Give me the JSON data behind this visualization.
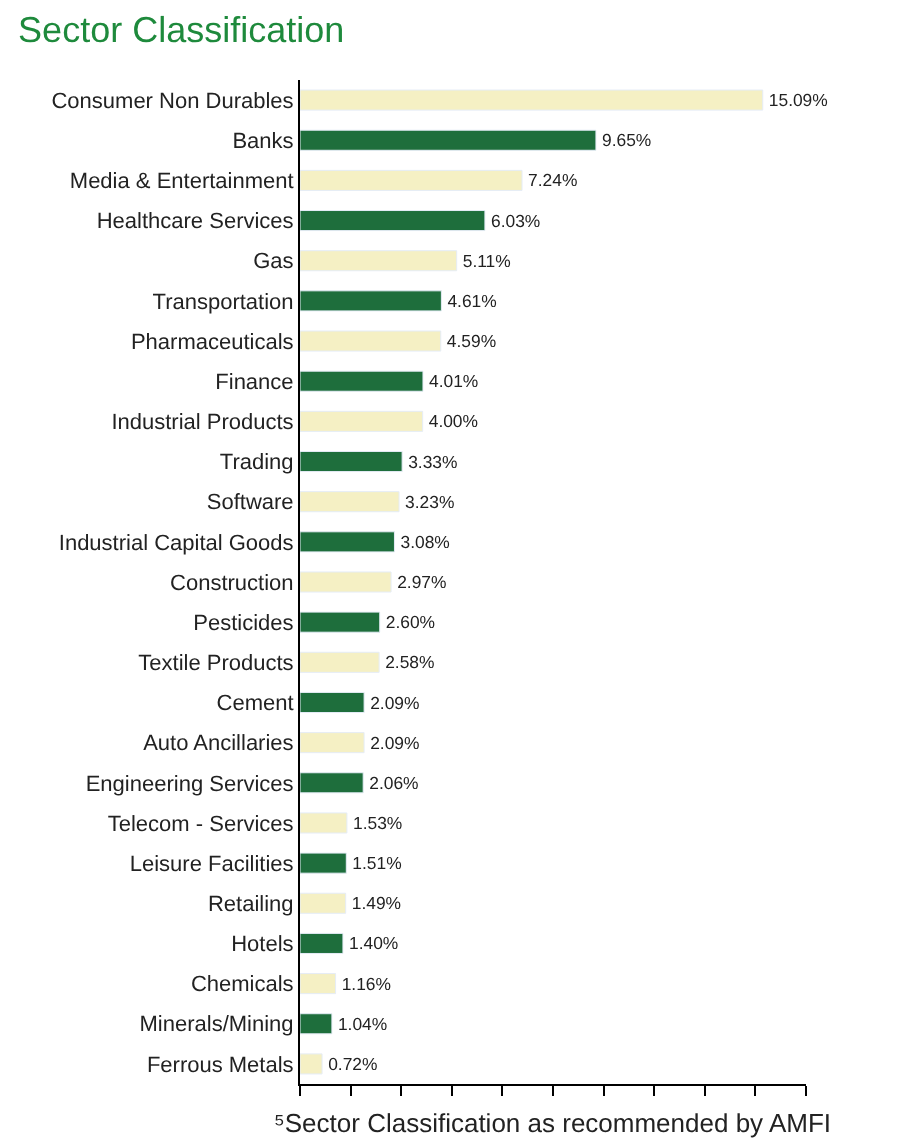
{
  "chart_data": {
    "type": "bar",
    "orientation": "horizontal",
    "title": "Sector Classification",
    "categories": [
      "Consumer Non Durables",
      "Banks",
      "Media & Entertainment",
      "Healthcare Services",
      "Gas",
      "Transportation",
      "Pharmaceuticals",
      "Finance",
      "Industrial Products",
      "Trading",
      "Software",
      "Industrial Capital Goods",
      "Construction",
      "Pesticides",
      "Textile Products",
      "Cement",
      "Auto Ancillaries",
      "Engineering Services",
      "Telecom - Services",
      "Leisure Facilities",
      "Retailing",
      "Hotels",
      "Chemicals",
      "Minerals/Mining",
      "Ferrous Metals"
    ],
    "values": [
      15.09,
      9.65,
      7.24,
      6.03,
      5.11,
      4.61,
      4.59,
      4.01,
      4.0,
      3.33,
      3.23,
      3.08,
      2.97,
      2.6,
      2.58,
      2.09,
      2.09,
      2.06,
      1.53,
      1.51,
      1.49,
      1.4,
      1.16,
      1.04,
      0.72
    ],
    "value_labels": [
      "15.09%",
      "9.65%",
      "7.24%",
      "6.03%",
      "5.11%",
      "4.61%",
      "4.59%",
      "4.01%",
      "4.00%",
      "3.33%",
      "3.23%",
      "3.08%",
      "2.97%",
      "2.60%",
      "2.58%",
      "2.09%",
      "2.09%",
      "2.06%",
      "1.53%",
      "1.51%",
      "1.49%",
      "1.40%",
      "1.16%",
      "1.04%",
      "0.72%"
    ],
    "colors": [
      "#f5f0c4",
      "#1e6e3c",
      "#f5f0c4",
      "#1e6e3c",
      "#f5f0c4",
      "#1e6e3c",
      "#f5f0c4",
      "#1e6e3c",
      "#f5f0c4",
      "#1e6e3c",
      "#f5f0c4",
      "#1e6e3c",
      "#f5f0c4",
      "#1e6e3c",
      "#f5f0c4",
      "#1e6e3c",
      "#f5f0c4",
      "#1e6e3c",
      "#f5f0c4",
      "#1e6e3c",
      "#f5f0c4",
      "#1e6e3c",
      "#f5f0c4",
      "#1e6e3c",
      "#f5f0c4"
    ],
    "xlim": [
      0,
      16.5
    ],
    "xticks": [
      {
        "value": 0,
        "label": null
      },
      {
        "value": 1.65,
        "label": null
      },
      {
        "value": 3.3,
        "label": null
      },
      {
        "value": 4.95,
        "label": null
      },
      {
        "value": 6.6,
        "label": null
      },
      {
        "value": 8.25,
        "label": null
      },
      {
        "value": 9.9,
        "label": null
      },
      {
        "value": 11.55,
        "label": null
      },
      {
        "value": 13.2,
        "label": null
      },
      {
        "value": 14.85,
        "label": null
      },
      {
        "value": 16.5,
        "label": null
      }
    ],
    "tick_labels": "y",
    "annotations": [
      "⁵Sector Classification as recommended by AMFI"
    ]
  }
}
